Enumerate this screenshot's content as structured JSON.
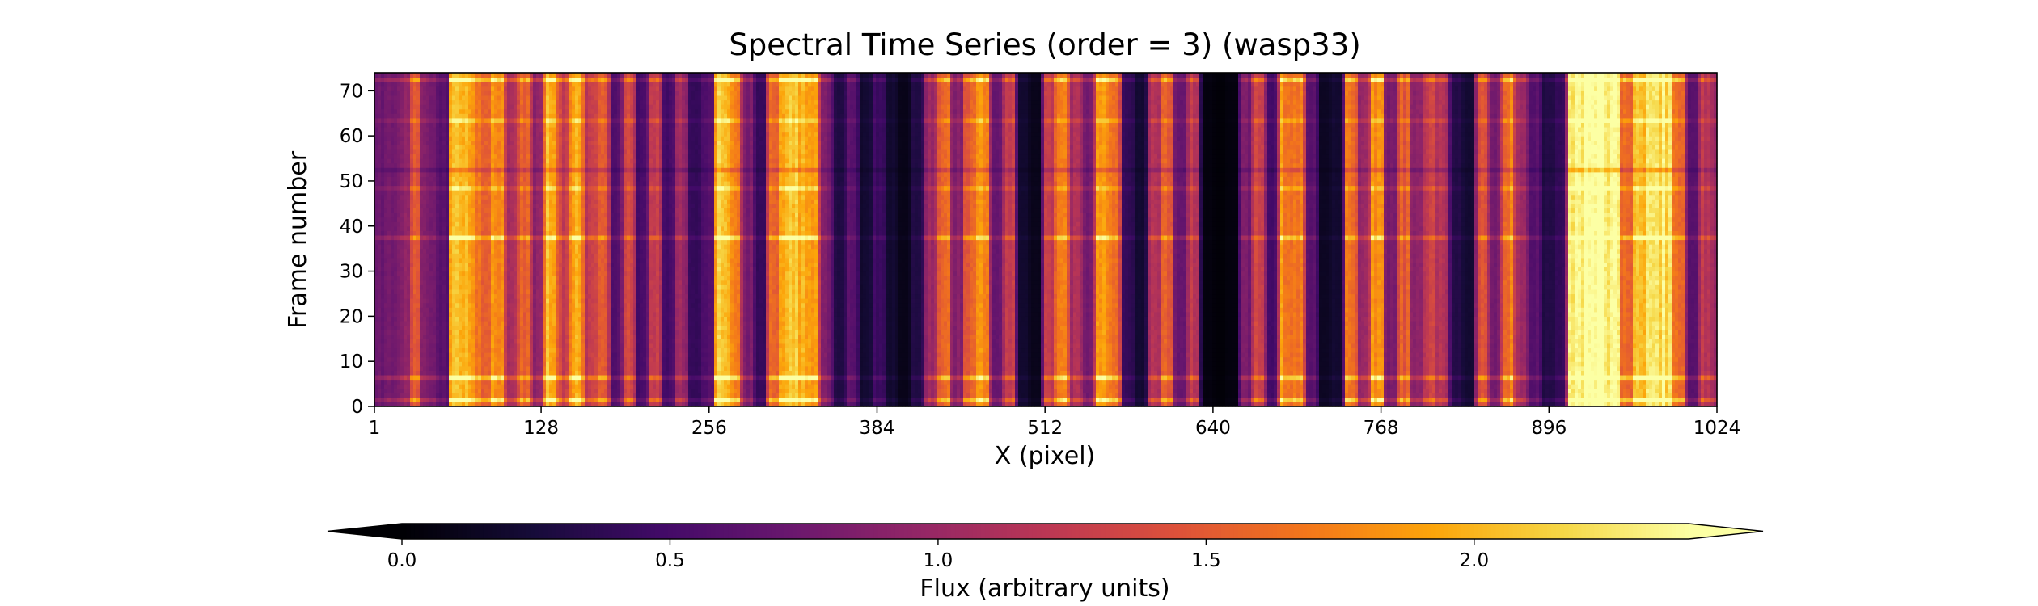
{
  "chart_data": {
    "type": "heatmap",
    "title": "Spectral Time Series (order = 3) (wasp33)",
    "xlabel": "X (pixel)",
    "ylabel": "Frame number",
    "xlim": [
      1,
      1024
    ],
    "ylim": [
      0,
      74
    ],
    "x_ticks": [
      1,
      128,
      256,
      384,
      512,
      640,
      768,
      896,
      1024
    ],
    "y_ticks": [
      0,
      10,
      20,
      30,
      40,
      50,
      60,
      70
    ],
    "n_frames": 74,
    "colormap": "inferno",
    "colorbar": {
      "label": "Flux (arbitrary units)",
      "range": [
        0.0,
        2.4
      ],
      "ticks": [
        0.0,
        0.5,
        1.0,
        1.5,
        2.0
      ],
      "extend": "both",
      "orientation": "horizontal",
      "placement": "bottom"
    },
    "column_profile": [
      {
        "x": 1,
        "flux": 0.7
      },
      {
        "x": 15,
        "flux": 0.75
      },
      {
        "x": 25,
        "flux": 0.9
      },
      {
        "x": 32,
        "flux": 1.4
      },
      {
        "x": 40,
        "flux": 0.8
      },
      {
        "x": 55,
        "flux": 0.6
      },
      {
        "x": 60,
        "flux": 2.0
      },
      {
        "x": 72,
        "flux": 1.9
      },
      {
        "x": 85,
        "flux": 1.6
      },
      {
        "x": 95,
        "flux": 1.8
      },
      {
        "x": 105,
        "flux": 1.1
      },
      {
        "x": 115,
        "flux": 1.5
      },
      {
        "x": 125,
        "flux": 0.9
      },
      {
        "x": 135,
        "flux": 2.0
      },
      {
        "x": 145,
        "flux": 1.3
      },
      {
        "x": 155,
        "flux": 1.9
      },
      {
        "x": 165,
        "flux": 1.2
      },
      {
        "x": 175,
        "flux": 1.6
      },
      {
        "x": 185,
        "flux": 0.6
      },
      {
        "x": 195,
        "flux": 1.4
      },
      {
        "x": 205,
        "flux": 0.5
      },
      {
        "x": 215,
        "flux": 1.2
      },
      {
        "x": 225,
        "flux": 0.5
      },
      {
        "x": 235,
        "flux": 1.0
      },
      {
        "x": 245,
        "flux": 0.4
      },
      {
        "x": 255,
        "flux": 0.6
      },
      {
        "x": 265,
        "flux": 2.05
      },
      {
        "x": 275,
        "flux": 1.8
      },
      {
        "x": 285,
        "flux": 0.8
      },
      {
        "x": 295,
        "flux": 0.4
      },
      {
        "x": 305,
        "flux": 1.6
      },
      {
        "x": 315,
        "flux": 2.05
      },
      {
        "x": 325,
        "flux": 2.0
      },
      {
        "x": 335,
        "flux": 1.8
      },
      {
        "x": 345,
        "flux": 0.8
      },
      {
        "x": 355,
        "flux": 0.3
      },
      {
        "x": 365,
        "flux": 0.6
      },
      {
        "x": 375,
        "flux": 0.2
      },
      {
        "x": 385,
        "flux": 0.45
      },
      {
        "x": 395,
        "flux": 0.2
      },
      {
        "x": 405,
        "flux": 0.1
      },
      {
        "x": 415,
        "flux": 0.3
      },
      {
        "x": 425,
        "flux": 1.0
      },
      {
        "x": 435,
        "flux": 1.6
      },
      {
        "x": 445,
        "flux": 0.9
      },
      {
        "x": 455,
        "flux": 1.5
      },
      {
        "x": 465,
        "flux": 1.8
      },
      {
        "x": 475,
        "flux": 0.7
      },
      {
        "x": 485,
        "flux": 1.3
      },
      {
        "x": 495,
        "flux": 0.2
      },
      {
        "x": 505,
        "flux": 0.1
      },
      {
        "x": 515,
        "flux": 1.2
      },
      {
        "x": 525,
        "flux": 1.8
      },
      {
        "x": 535,
        "flux": 1.1
      },
      {
        "x": 545,
        "flux": 0.8
      },
      {
        "x": 555,
        "flux": 1.9
      },
      {
        "x": 565,
        "flux": 1.6
      },
      {
        "x": 575,
        "flux": 0.4
      },
      {
        "x": 585,
        "flux": 0.2
      },
      {
        "x": 595,
        "flux": 1.1
      },
      {
        "x": 605,
        "flux": 1.5
      },
      {
        "x": 615,
        "flux": 0.7
      },
      {
        "x": 625,
        "flux": 1.2
      },
      {
        "x": 635,
        "flux": 0.05
      },
      {
        "x": 645,
        "flux": 0.02
      },
      {
        "x": 655,
        "flux": 0.05
      },
      {
        "x": 665,
        "flux": 0.8
      },
      {
        "x": 675,
        "flux": 1.3
      },
      {
        "x": 685,
        "flux": 0.5
      },
      {
        "x": 695,
        "flux": 1.8
      },
      {
        "x": 705,
        "flux": 1.7
      },
      {
        "x": 715,
        "flux": 0.6
      },
      {
        "x": 725,
        "flux": 0.15
      },
      {
        "x": 735,
        "flux": 0.2
      },
      {
        "x": 745,
        "flux": 1.6
      },
      {
        "x": 755,
        "flux": 1.0
      },
      {
        "x": 765,
        "flux": 1.8
      },
      {
        "x": 775,
        "flux": 0.8
      },
      {
        "x": 785,
        "flux": 1.5
      },
      {
        "x": 795,
        "flux": 0.9
      },
      {
        "x": 805,
        "flux": 1.3
      },
      {
        "x": 815,
        "flux": 1.1
      },
      {
        "x": 825,
        "flux": 0.3
      },
      {
        "x": 835,
        "flux": 0.2
      },
      {
        "x": 845,
        "flux": 1.4
      },
      {
        "x": 855,
        "flux": 0.8
      },
      {
        "x": 865,
        "flux": 1.7
      },
      {
        "x": 875,
        "flux": 1.0
      },
      {
        "x": 885,
        "flux": 0.6
      },
      {
        "x": 895,
        "flux": 0.3
      },
      {
        "x": 905,
        "flux": 0.4
      },
      {
        "x": 915,
        "flux": 2.25
      },
      {
        "x": 925,
        "flux": 2.35
      },
      {
        "x": 935,
        "flux": 2.35
      },
      {
        "x": 945,
        "flux": 2.3
      },
      {
        "x": 955,
        "flux": 1.6
      },
      {
        "x": 965,
        "flux": 2.0
      },
      {
        "x": 975,
        "flux": 2.3
      },
      {
        "x": 985,
        "flux": 2.2
      },
      {
        "x": 995,
        "flux": 1.6
      },
      {
        "x": 1005,
        "flux": 0.6
      },
      {
        "x": 1015,
        "flux": 1.2
      },
      {
        "x": 1024,
        "flux": 1.0
      }
    ],
    "row_features": [
      {
        "frame": 1.5,
        "flux_scale": 1.3
      },
      {
        "frame": 6.5,
        "flux_scale": 1.3
      },
      {
        "frame": 37.5,
        "flux_scale": 1.25
      },
      {
        "frame": 48.5,
        "flux_scale": 1.15
      },
      {
        "frame": 52.5,
        "flux_scale": 0.85
      },
      {
        "frame": 63.5,
        "flux_scale": 1.15
      },
      {
        "frame": 72.5,
        "flux_scale": 1.3
      }
    ]
  }
}
